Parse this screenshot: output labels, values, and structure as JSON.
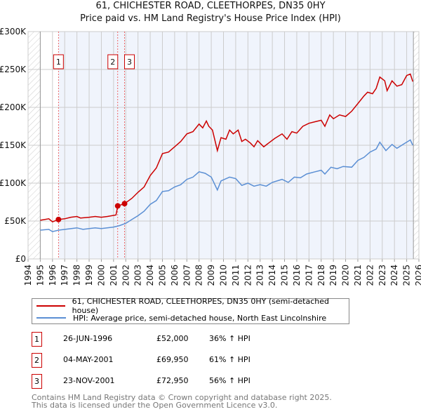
{
  "chart_data": {
    "type": "line",
    "title": "61, CHICHESTER ROAD, CLEETHORPES, DN35 0HY",
    "subtitle": "Price paid vs. HM Land Registry's House Price Index (HPI)",
    "xlim": [
      1994,
      2026
    ],
    "ylim": [
      0,
      300000
    ],
    "x_ticks": [
      "1994",
      "1995",
      "1996",
      "1997",
      "1998",
      "1999",
      "2000",
      "2001",
      "2002",
      "2003",
      "2004",
      "2005",
      "2006",
      "2007",
      "2008",
      "2009",
      "2010",
      "2011",
      "2012",
      "2013",
      "2014",
      "2015",
      "2016",
      "2017",
      "2018",
      "2019",
      "2020",
      "2021",
      "2022",
      "2023",
      "2024",
      "2025",
      "2026"
    ],
    "y_ticks": [
      {
        "v": 0,
        "label": "£0"
      },
      {
        "v": 50000,
        "label": "£50K"
      },
      {
        "v": 100000,
        "label": "£100K"
      },
      {
        "v": 150000,
        "label": "£150K"
      },
      {
        "v": 200000,
        "label": "£200K"
      },
      {
        "v": 250000,
        "label": "£250K"
      },
      {
        "v": 300000,
        "label": "£300K"
      }
    ],
    "grid": true,
    "series": [
      {
        "name": "61, CHICHESTER ROAD, CLEETHORPES, DN35 0HY (semi-detached house)",
        "color": "#cc0000",
        "x": [
          1995.0,
          1995.7,
          1996.0,
          1996.5,
          1997,
          1997.5,
          1998,
          1998.3,
          1999,
          1999.5,
          2000,
          2000.5,
          2001.2,
          2001.35,
          2001.9,
          2002.5,
          2003,
          2003.5,
          2004,
          2004.5,
          2005,
          2005.5,
          2006,
          2006.5,
          2007,
          2007.5,
          2008,
          2008.3,
          2008.6,
          2008.8,
          2009.1,
          2009.5,
          2009.8,
          2010.2,
          2010.5,
          2010.8,
          2011.2,
          2011.5,
          2011.8,
          2012.2,
          2012.5,
          2012.8,
          2013.3,
          2013.7,
          2014.2,
          2014.8,
          2015.2,
          2015.6,
          2016,
          2016.5,
          2017,
          2017.5,
          2018,
          2018.3,
          2018.7,
          2019,
          2019.5,
          2020,
          2020.5,
          2021,
          2021.5,
          2021.8,
          2022.2,
          2022.5,
          2022.8,
          2023.2,
          2023.4,
          2023.8,
          2024.2,
          2024.6,
          2025,
          2025.3,
          2025.5
        ],
        "y": [
          51000,
          53000,
          49000,
          52000,
          53000,
          55000,
          56000,
          54000,
          55000,
          56000,
          55000,
          56000,
          58000,
          70000,
          73000,
          80000,
          88000,
          95000,
          110000,
          120000,
          139000,
          141000,
          148000,
          155000,
          165000,
          168000,
          178000,
          173000,
          182000,
          175000,
          170000,
          143000,
          160000,
          158000,
          170000,
          165000,
          170000,
          155000,
          158000,
          153000,
          148000,
          156000,
          148000,
          153000,
          159000,
          165000,
          158000,
          168000,
          166000,
          175000,
          179000,
          181000,
          183000,
          175000,
          190000,
          185000,
          190000,
          188000,
          195000,
          205000,
          215000,
          220000,
          218000,
          225000,
          240000,
          235000,
          222000,
          235000,
          228000,
          230000,
          242000,
          244000,
          234000
        ]
      },
      {
        "name": "HPI: Average price, semi-detached house, North East Lincolnshire",
        "color": "#5b8fd4",
        "x": [
          1995,
          1995.7,
          1996,
          1996.5,
          1998,
          1998.5,
          1999.5,
          2000,
          2001,
          2001.5,
          2002,
          2002.5,
          2003,
          2003.5,
          2004,
          2004.5,
          2005,
          2005.5,
          2006,
          2006.5,
          2007,
          2007.5,
          2008,
          2008.5,
          2009,
          2009.5,
          2009.8,
          2010.5,
          2011,
          2011.5,
          2012,
          2012.5,
          2013,
          2013.5,
          2014,
          2014.8,
          2015.3,
          2015.8,
          2016.3,
          2016.8,
          2017.5,
          2018,
          2018.3,
          2018.8,
          2019.3,
          2019.8,
          2020.5,
          2021,
          2021.5,
          2022,
          2022.5,
          2022.8,
          2023.3,
          2023.8,
          2024.2,
          2024.8,
          2025.3,
          2025.5
        ],
        "y": [
          38000,
          39000,
          36000,
          38000,
          41000,
          39000,
          41000,
          40000,
          42000,
          44000,
          47000,
          52000,
          57000,
          63000,
          72000,
          77000,
          89000,
          90000,
          95000,
          98000,
          105000,
          108000,
          115000,
          113000,
          108000,
          91000,
          103000,
          108000,
          106000,
          97000,
          100000,
          96000,
          98000,
          96000,
          101000,
          105000,
          101000,
          108000,
          107000,
          112000,
          115000,
          117000,
          112000,
          121000,
          119000,
          122000,
          121000,
          130000,
          134000,
          141000,
          145000,
          154000,
          143000,
          151000,
          146000,
          152000,
          157000,
          150000
        ]
      }
    ],
    "sales": [
      {
        "id": "1",
        "x": 1996.49,
        "price": 52000,
        "date": "26-JUN-1996",
        "price_label": "£52,000",
        "hpi": "36% ↑ HPI"
      },
      {
        "id": "2",
        "x": 2001.34,
        "price": 69950,
        "date": "04-MAY-2001",
        "price_label": "£69,950",
        "hpi": "61% ↑ HPI"
      },
      {
        "id": "3",
        "x": 2001.9,
        "price": 72950,
        "date": "23-NOV-2001",
        "price_label": "£72,950",
        "hpi": "56% ↑ HPI"
      }
    ],
    "legend_placement": "below"
  },
  "footer": {
    "line1": "Contains HM Land Registry data © Crown copyright and database right 2025.",
    "line2": "This data is licensed under the Open Government Licence v3.0."
  }
}
